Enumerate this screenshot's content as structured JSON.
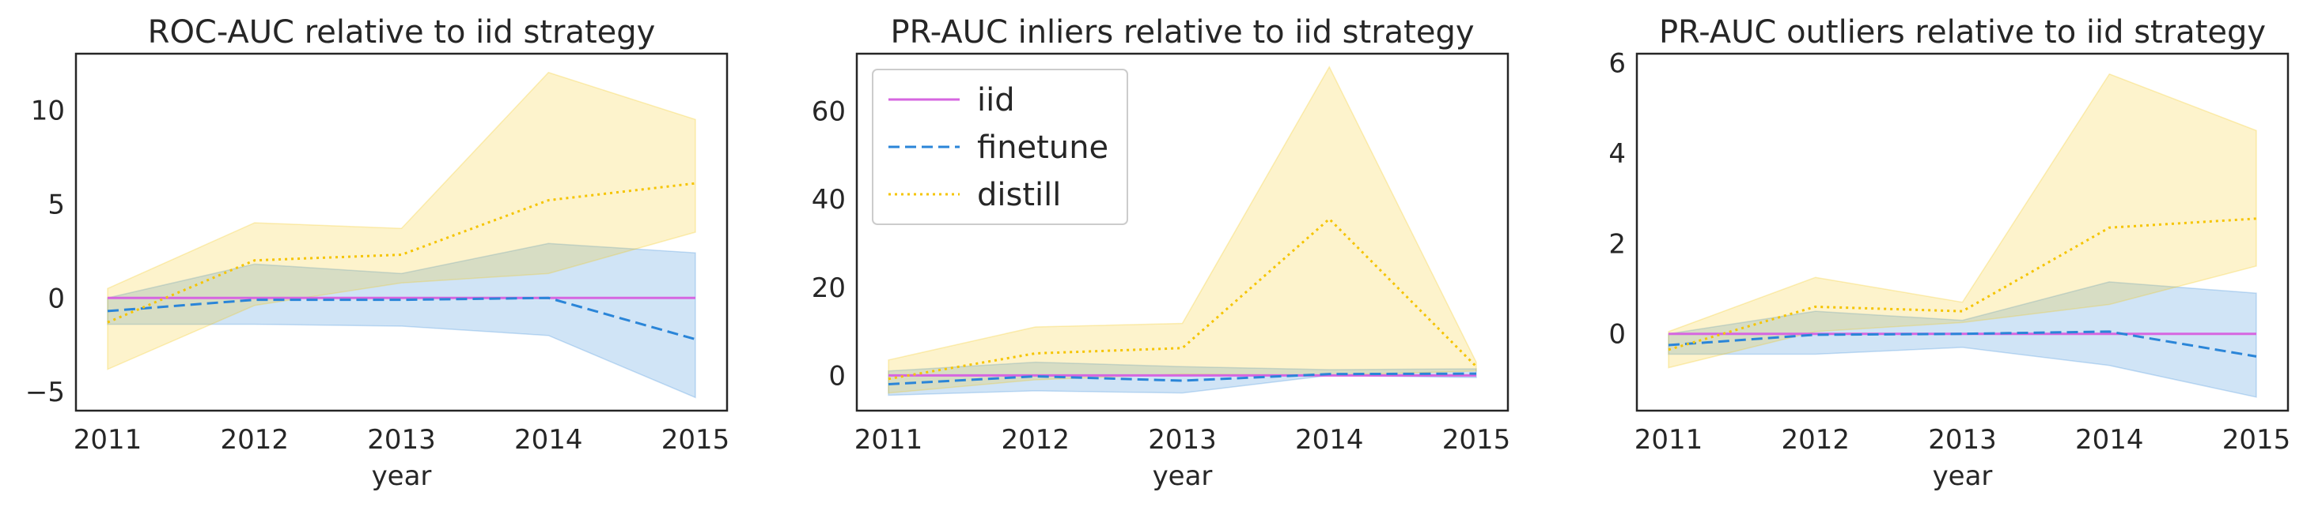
{
  "chart_data": [
    {
      "type": "line",
      "title": "ROC-AUC relative to iid strategy",
      "xlabel": "year",
      "ylabel": "",
      "x": [
        2011,
        2012,
        2013,
        2014,
        2015
      ],
      "xlim": [
        2011,
        2015
      ],
      "ylim": [
        -6,
        13
      ],
      "yticks": [
        -5,
        0,
        5,
        10
      ],
      "grid": false,
      "series": [
        {
          "name": "iid",
          "color": "#d666e0",
          "dash": "solid",
          "values": [
            0,
            0,
            0,
            0,
            0
          ],
          "lower": [
            0,
            0,
            0,
            0,
            0
          ],
          "upper": [
            0,
            0,
            0,
            0,
            0
          ]
        },
        {
          "name": "finetune",
          "color": "#2a85d8",
          "dash": "dashed",
          "values": [
            -0.7,
            -0.1,
            -0.1,
            0,
            -2.2
          ],
          "lower": [
            -1.4,
            -1.4,
            -1.5,
            -2,
            -5.3
          ],
          "upper": [
            0,
            1.8,
            1.3,
            2.9,
            2.4
          ]
        },
        {
          "name": "distill",
          "color": "#f5c400",
          "dash": "dotted",
          "values": [
            -1.3,
            2,
            2.3,
            5.2,
            6.1
          ],
          "lower": [
            -3.8,
            -0.4,
            0.8,
            1.3,
            3.5
          ],
          "upper": [
            0.5,
            4,
            3.7,
            12,
            9.5
          ]
        }
      ]
    },
    {
      "type": "line",
      "title": "PR-AUC inliers relative to iid strategy",
      "xlabel": "year",
      "ylabel": "",
      "x": [
        2011,
        2012,
        2013,
        2014,
        2015
      ],
      "xlim": [
        2011,
        2015
      ],
      "ylim": [
        -8,
        73
      ],
      "yticks": [
        0,
        20,
        40,
        60
      ],
      "grid": false,
      "legend": {
        "position": "upper-left",
        "entries": [
          "iid",
          "finetune",
          "distill"
        ]
      },
      "series": [
        {
          "name": "iid",
          "color": "#d666e0",
          "dash": "solid",
          "values": [
            0,
            0,
            0,
            0,
            0
          ],
          "lower": [
            0,
            0,
            0,
            0,
            0
          ],
          "upper": [
            0,
            0,
            0,
            0,
            0
          ]
        },
        {
          "name": "finetune",
          "color": "#2a85d8",
          "dash": "dashed",
          "values": [
            -2,
            -0.2,
            -1.2,
            0.3,
            0.4
          ],
          "lower": [
            -4.5,
            -3.5,
            -4,
            0,
            -0.5
          ],
          "upper": [
            1,
            3,
            2,
            1.3,
            1.5
          ]
        },
        {
          "name": "distill",
          "color": "#f5c400",
          "dash": "dotted",
          "values": [
            -0.8,
            5,
            6.2,
            35.5,
            2
          ],
          "lower": [
            -4,
            -1,
            0.3,
            0,
            1
          ],
          "upper": [
            3.5,
            11,
            11.8,
            70,
            3
          ]
        }
      ]
    },
    {
      "type": "line",
      "title": "PR-AUC outliers relative to iid strategy",
      "xlabel": "year",
      "ylabel": "",
      "x": [
        2011,
        2012,
        2013,
        2014,
        2015
      ],
      "xlim": [
        2011,
        2015
      ],
      "ylim": [
        -1.7,
        6.2
      ],
      "yticks": [
        0,
        2,
        4,
        6
      ],
      "grid": false,
      "series": [
        {
          "name": "iid",
          "color": "#d666e0",
          "dash": "solid",
          "values": [
            0,
            0,
            0,
            0,
            0
          ],
          "lower": [
            0,
            0,
            0,
            0,
            0
          ],
          "upper": [
            0,
            0,
            0,
            0,
            0
          ]
        },
        {
          "name": "finetune",
          "color": "#2a85d8",
          "dash": "dashed",
          "values": [
            -0.25,
            -0.02,
            0,
            0.05,
            -0.5
          ],
          "lower": [
            -0.45,
            -0.45,
            -0.3,
            -0.7,
            -1.4
          ],
          "upper": [
            0,
            0.5,
            0.3,
            1.15,
            0.9
          ]
        },
        {
          "name": "distill",
          "color": "#f5c400",
          "dash": "dotted",
          "values": [
            -0.35,
            0.6,
            0.5,
            2.35,
            2.55
          ],
          "lower": [
            -0.75,
            0.05,
            0.25,
            0.65,
            1.5
          ],
          "upper": [
            0.05,
            1.25,
            0.7,
            5.75,
            4.5
          ]
        }
      ]
    }
  ]
}
